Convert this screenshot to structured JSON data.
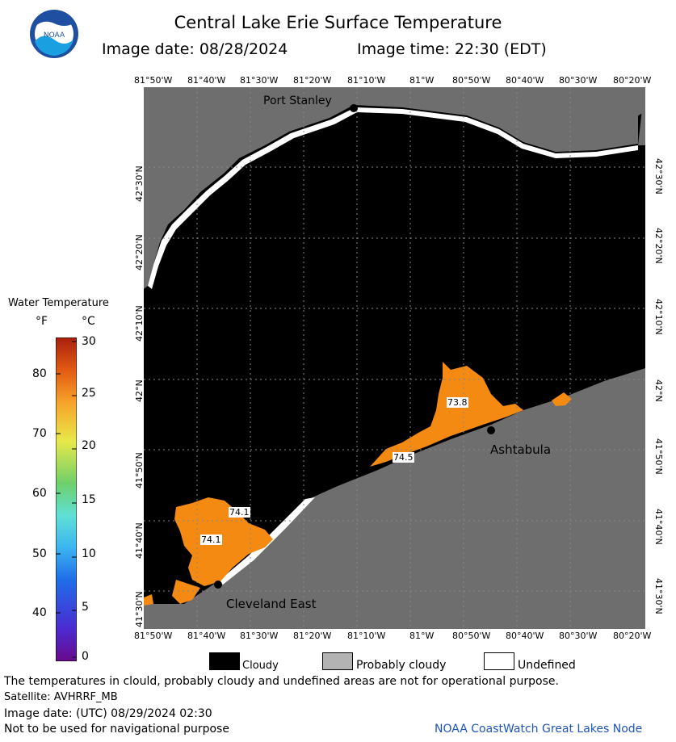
{
  "header": {
    "title": "Central Lake Erie Surface Temperature",
    "image_date": "Image date: 08/28/2024",
    "image_time": "Image time: 22:30 (EDT)",
    "logo_text": "NOAA"
  },
  "map": {
    "lon_labels": [
      "81°50'W",
      "81°40'W",
      "81°30'W",
      "81°20'W",
      "81°10'W",
      "81°W",
      "80°50'W",
      "80°40'W",
      "80°30'W",
      "80°20'W"
    ],
    "lat_labels": [
      "42°30'N",
      "42°20'N",
      "42°10'N",
      "42°N",
      "41°50'N",
      "41°40'N",
      "41°30'N"
    ],
    "places": {
      "port_stanley": "Port Stanley",
      "ashtabula": "Ashtabula",
      "cleveland_east": "Cleveland East"
    },
    "temperature_labels": [
      "73.8",
      "74.5",
      "74.1",
      "74.1"
    ],
    "colors": {
      "cloud": "#000000",
      "land": "#6e6e6e",
      "undefined": "#ffffff",
      "water_warm": "#f58a12"
    }
  },
  "scale": {
    "title": "Water Temperature",
    "unit_f": "°F",
    "unit_c": "°C",
    "f_ticks": [
      "80",
      "70",
      "60",
      "50",
      "40"
    ],
    "c_ticks": [
      "30",
      "25",
      "20",
      "15",
      "10",
      "5",
      "0"
    ]
  },
  "legend": {
    "cloudy": "Cloudy",
    "probably_cloudy": "Probably cloudy",
    "undefined": "Undefined"
  },
  "footer": {
    "note": "The temperatures in clould, probably cloudy and undefined areas are not for operational purpose.",
    "satellite": "Satellite: AVHRRF_MB",
    "image_date_utc": "Image date: (UTC) 08/29/2024  02:30",
    "nav_warning": "Not to be used for navigational purpose",
    "credit": "NOAA CoastWatch Great Lakes Node"
  }
}
